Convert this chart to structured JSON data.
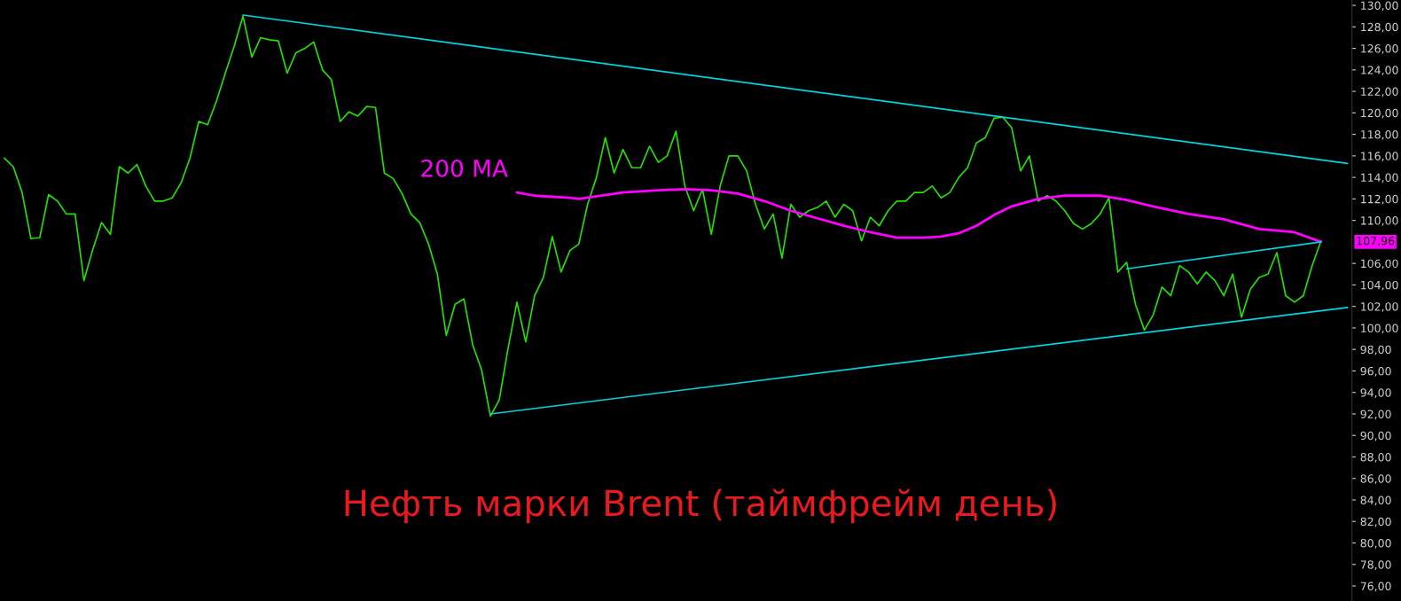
{
  "chart_data": {
    "type": "line",
    "title": "Нефть марки Brent (таймфрейм день)",
    "categories": [
      null,
      null,
      null,
      null,
      null,
      null,
      null,
      null,
      null,
      null,
      null,
      null,
      null,
      null,
      null,
      null,
      null,
      null,
      null,
      null,
      null,
      null,
      null,
      null,
      null,
      null,
      null,
      null,
      null,
      null,
      null,
      null,
      null,
      null,
      null,
      null,
      null,
      null,
      null,
      null,
      null,
      null,
      null,
      null,
      null,
      null,
      null,
      null,
      null,
      null,
      null,
      null,
      null,
      null,
      null,
      null,
      null,
      null,
      null,
      null,
      null,
      null,
      null,
      null,
      null,
      null,
      null,
      null,
      null,
      null,
      null,
      null,
      null,
      null,
      null,
      null,
      null,
      null,
      null,
      null,
      null,
      null,
      null,
      null,
      null,
      null,
      null,
      null,
      null,
      null,
      null,
      null,
      null,
      null,
      null,
      null,
      null,
      null,
      null,
      null,
      null,
      null,
      null,
      null,
      null,
      null,
      null,
      null,
      null,
      null,
      null,
      null,
      null,
      null,
      null,
      null,
      null,
      null,
      null,
      null,
      null,
      null,
      null,
      null,
      null,
      null,
      null,
      null,
      null,
      null,
      null,
      null,
      null,
      null,
      null,
      null,
      null,
      null,
      null,
      null,
      null,
      null,
      null,
      null,
      null,
      null,
      null,
      null,
      null,
      null,
      null,
      null,
      null
    ],
    "series": [
      {
        "color": "#22e000",
        "values": [
          115.8,
          115.0,
          112.6,
          108.3,
          108.4,
          112.4,
          111.8,
          110.6,
          110.6,
          104.4,
          107.3,
          109.8,
          108.7,
          115.0,
          114.4,
          115.2,
          113.2,
          111.8,
          111.8,
          112.1,
          113.5,
          115.8,
          119.2,
          118.9,
          121.1,
          123.7,
          126.2,
          129.0,
          125.2,
          127.0,
          126.8,
          126.7,
          123.7,
          125.6,
          126.0,
          126.6,
          124.0,
          123.1,
          119.2,
          120.1,
          119.7,
          120.6,
          120.5,
          114.4,
          113.9,
          112.5,
          110.6,
          109.8,
          107.8,
          105.0,
          99.3,
          102.2,
          102.7,
          98.4,
          96.1,
          91.8,
          93.3,
          98.1,
          102.4,
          98.7,
          103.0,
          104.7,
          108.5,
          105.2,
          107.2,
          107.8,
          111.5,
          114.0,
          117.7,
          114.4,
          116.6,
          114.9,
          114.9,
          116.9,
          115.4,
          116.0,
          118.3,
          113.2,
          110.9,
          112.9,
          108.7,
          113.2,
          116.0,
          116.0,
          114.6,
          111.5,
          109.2,
          110.6,
          106.5,
          111.5,
          110.3,
          110.9,
          111.2,
          111.8,
          110.3,
          111.5,
          110.9,
          108.1,
          110.3,
          109.5,
          110.9,
          111.8,
          111.8,
          112.6,
          112.6,
          113.2,
          112.1,
          112.6,
          114.0,
          114.9,
          117.2,
          117.7,
          119.5,
          119.6,
          118.6,
          114.6,
          116.0,
          111.8,
          112.3,
          111.8,
          110.9,
          109.7,
          109.2,
          109.7,
          110.6,
          112.1,
          105.2,
          106.1,
          102.2,
          99.8,
          101.2,
          103.8,
          103.0,
          105.8,
          105.2,
          104.1,
          105.2,
          104.4,
          103.0,
          105.0,
          101.0,
          103.6,
          104.7,
          105.0,
          107.0,
          103.0,
          102.4,
          103.0,
          105.8,
          108.1,
          null,
          null,
          null
        ]
      },
      {
        "name": "200 MA",
        "color": "#ff00ff",
        "values": [
          null,
          null,
          null,
          null,
          null,
          null,
          null,
          null,
          null,
          null,
          null,
          null,
          null,
          null,
          null,
          null,
          null,
          null,
          null,
          null,
          null,
          null,
          null,
          null,
          null,
          null,
          null,
          null,
          null,
          null,
          null,
          null,
          null,
          null,
          null,
          null,
          null,
          null,
          null,
          null,
          null,
          null,
          null,
          null,
          null,
          null,
          null,
          null,
          null,
          null,
          null,
          null,
          null,
          null,
          null,
          null,
          null,
          null,
          112.6,
          null,
          112.3,
          null,
          null,
          null,
          112.1,
          112.0,
          null,
          null,
          null,
          null,
          112.6,
          null,
          null,
          null,
          112.8,
          null,
          null,
          112.9,
          null,
          null,
          112.8,
          null,
          null,
          112.5,
          null,
          null,
          111.8,
          null,
          null,
          110.9,
          null,
          null,
          110.2,
          null,
          null,
          109.5,
          null,
          null,
          108.9,
          null,
          null,
          108.4,
          null,
          null,
          108.4,
          null,
          108.5,
          null,
          108.8,
          null,
          109.5,
          null,
          110.5,
          null,
          111.3,
          null,
          null,
          112.0,
          null,
          null,
          112.3,
          null,
          null,
          null,
          112.3,
          null,
          null,
          111.9,
          null,
          null,
          111.3,
          null,
          null,
          null,
          110.6,
          null,
          null,
          null,
          110.1,
          null,
          null,
          null,
          109.2,
          null,
          null,
          null,
          108.9,
          null,
          null,
          108.0,
          null,
          null,
          null
        ]
      },
      {
        "color": "#00d4e0",
        "values": [
          null,
          null,
          null,
          null,
          null,
          null,
          null,
          null,
          null,
          null,
          null,
          null,
          null,
          null,
          null,
          null,
          null,
          null,
          null,
          null,
          null,
          null,
          null,
          null,
          null,
          null,
          null,
          129.1,
          null,
          null,
          null,
          null,
          null,
          null,
          null,
          null,
          null,
          null,
          null,
          null,
          null,
          null,
          null,
          null,
          null,
          null,
          null,
          null,
          null,
          null,
          null,
          null,
          null,
          null,
          null,
          null,
          null,
          null,
          null,
          null,
          null,
          null,
          null,
          null,
          null,
          null,
          null,
          null,
          null,
          null,
          null,
          null,
          null,
          null,
          null,
          null,
          null,
          null,
          null,
          null,
          null,
          null,
          null,
          null,
          null,
          null,
          null,
          null,
          null,
          null,
          null,
          null,
          null,
          null,
          null,
          null,
          null,
          null,
          null,
          null,
          null,
          null,
          null,
          null,
          null,
          null,
          null,
          null,
          null,
          null,
          null,
          null,
          null,
          null,
          null,
          null,
          null,
          null,
          null,
          null,
          null,
          null,
          null,
          null,
          null,
          null,
          null,
          null,
          null,
          null,
          null,
          null,
          null,
          null,
          null,
          null,
          null,
          null,
          null,
          null,
          null,
          null,
          null,
          null,
          null,
          null,
          null,
          null,
          null,
          null,
          null,
          null,
          115.3
        ]
      },
      {
        "color": "#00d4e0",
        "values": [
          null,
          null,
          null,
          null,
          null,
          null,
          null,
          null,
          null,
          null,
          null,
          null,
          null,
          null,
          null,
          null,
          null,
          null,
          null,
          null,
          null,
          null,
          null,
          null,
          null,
          null,
          null,
          null,
          null,
          null,
          null,
          null,
          null,
          null,
          null,
          null,
          null,
          null,
          null,
          null,
          null,
          null,
          null,
          null,
          null,
          null,
          null,
          null,
          null,
          null,
          null,
          null,
          null,
          null,
          null,
          92.0,
          null,
          null,
          null,
          null,
          null,
          null,
          null,
          null,
          null,
          null,
          null,
          null,
          null,
          null,
          null,
          null,
          null,
          null,
          null,
          null,
          null,
          null,
          null,
          null,
          null,
          null,
          null,
          null,
          null,
          null,
          null,
          null,
          null,
          null,
          null,
          null,
          null,
          null,
          null,
          null,
          null,
          null,
          null,
          null,
          null,
          null,
          null,
          null,
          null,
          null,
          null,
          null,
          null,
          null,
          null,
          null,
          null,
          null,
          null,
          null,
          null,
          null,
          null,
          null,
          null,
          null,
          null,
          null,
          null,
          null,
          null,
          null,
          null,
          null,
          null,
          null,
          null,
          null,
          null,
          null,
          null,
          null,
          null,
          null,
          null,
          null,
          null,
          null,
          null,
          null,
          null,
          null,
          null,
          null,
          null,
          null,
          101.9
        ]
      },
      {
        "color": "#00d4e0",
        "values": [
          null,
          null,
          null,
          null,
          null,
          null,
          null,
          null,
          null,
          null,
          null,
          null,
          null,
          null,
          null,
          null,
          null,
          null,
          null,
          null,
          null,
          null,
          null,
          null,
          null,
          null,
          null,
          null,
          null,
          null,
          null,
          null,
          null,
          null,
          null,
          null,
          null,
          null,
          null,
          null,
          null,
          null,
          null,
          null,
          null,
          null,
          null,
          null,
          null,
          null,
          null,
          null,
          null,
          null,
          null,
          null,
          null,
          null,
          null,
          null,
          null,
          null,
          null,
          null,
          null,
          null,
          null,
          null,
          null,
          null,
          null,
          null,
          null,
          null,
          null,
          null,
          null,
          null,
          null,
          null,
          null,
          null,
          null,
          null,
          null,
          null,
          null,
          null,
          null,
          null,
          null,
          null,
          null,
          null,
          null,
          null,
          null,
          null,
          null,
          null,
          null,
          null,
          null,
          null,
          null,
          null,
          null,
          null,
          null,
          null,
          null,
          null,
          null,
          null,
          null,
          null,
          null,
          null,
          null,
          null,
          null,
          null,
          null,
          null,
          null,
          null,
          null,
          105.5,
          null,
          null,
          null,
          null,
          null,
          null,
          null,
          null,
          null,
          null,
          null,
          null,
          null,
          null,
          null,
          null,
          null,
          null,
          null,
          null,
          null,
          108.0,
          null,
          null,
          null
        ]
      }
    ],
    "annotations": [
      "107,96"
    ],
    "ylim": [
      74.6,
      130.5
    ],
    "yticks": [
      {
        "value": 76,
        "label": "76,00"
      },
      {
        "value": 78,
        "label": "78,00"
      },
      {
        "value": 80,
        "label": "80,00"
      },
      {
        "value": 82,
        "label": "82,00"
      },
      {
        "value": 84,
        "label": "84,00"
      },
      {
        "value": 86,
        "label": "86,00"
      },
      {
        "value": 88,
        "label": "88,00"
      },
      {
        "value": 90,
        "label": "90,00"
      },
      {
        "value": 92,
        "label": "92,00"
      },
      {
        "value": 94,
        "label": "94,00"
      },
      {
        "value": 96,
        "label": "96,00"
      },
      {
        "value": 98,
        "label": "98,00"
      },
      {
        "value": 100,
        "label": "100,00"
      },
      {
        "value": 102,
        "label": "102,00"
      },
      {
        "value": 104,
        "label": "104,00"
      },
      {
        "value": 106,
        "label": "106,00"
      },
      {
        "value": 110,
        "label": "110,00"
      },
      {
        "value": 112,
        "label": "112,00"
      },
      {
        "value": 114,
        "label": "114,00"
      },
      {
        "value": 116,
        "label": "116,00"
      },
      {
        "value": 118,
        "label": "118,00"
      },
      {
        "value": 120,
        "label": "120,00"
      },
      {
        "value": 122,
        "label": "122,00"
      },
      {
        "value": 124,
        "label": "124,00"
      },
      {
        "value": 126,
        "label": "126,00"
      },
      {
        "value": 128,
        "label": "128,00"
      },
      {
        "value": 130,
        "label": "130,00"
      }
    ],
    "tick_labels": "y"
  }
}
